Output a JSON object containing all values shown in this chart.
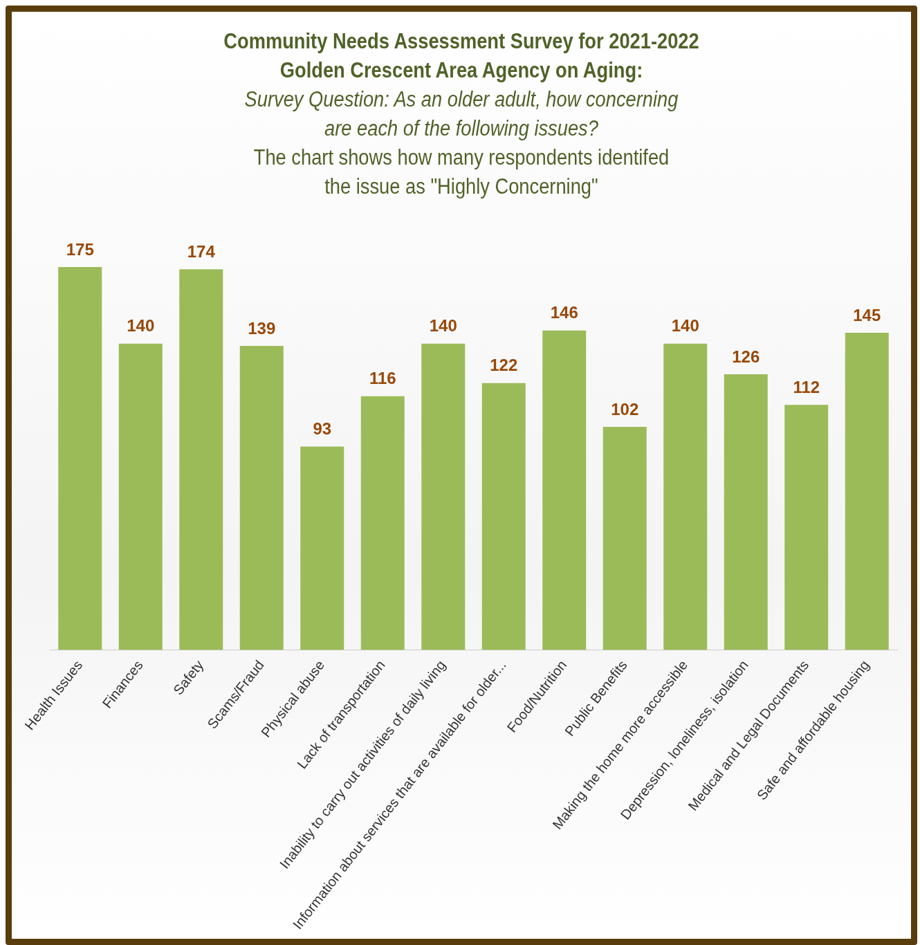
{
  "chart_data": {
    "type": "bar",
    "title": "Community Needs Assessment Survey for 2021-2022\nGolden Crescent Area Agency on Aging:",
    "subtitle": "Survey Question: As an older adult, how concerning\nare each of the following issues?",
    "annotations": [
      "The chart shows how many respondents identifed\nthe issue as \"Highly Concerning\""
    ],
    "categories": [
      "Health Issues",
      "Finances",
      "Safety",
      "Scams/Fraud",
      "Physical abuse",
      "Lack of transportation",
      "Inability to carry out activities of daily living",
      "Information about services that are available for older...",
      "Food/Nutrition",
      "Public Benefits",
      "Making the home more accessible",
      "Depression, loneliness, isolation",
      "Medical and Legal Documents",
      "Safe and affordable housing"
    ],
    "values": [
      175,
      140,
      174,
      139,
      93,
      116,
      140,
      122,
      146,
      102,
      140,
      126,
      112,
      145
    ],
    "color": "#9bbb59",
    "data_labels": true,
    "tick_labels": "x",
    "legend": false
  }
}
